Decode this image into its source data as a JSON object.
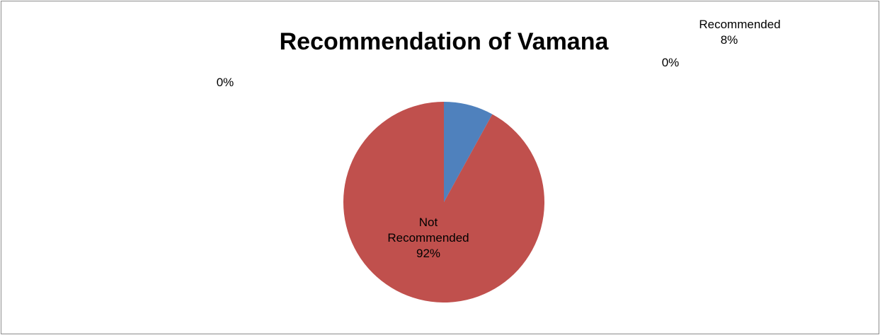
{
  "chart_data": {
    "type": "pie",
    "title": "Recommendation of Vamana",
    "categories": [
      "Recommended",
      "Not Recommended",
      null,
      null
    ],
    "values": [
      8,
      92,
      0,
      0
    ],
    "value_labels": [
      "8%",
      "92%",
      "0%",
      "0%"
    ],
    "colors": [
      "#4f81bd",
      "#c0504d",
      "#9bbb59",
      "#8064a2"
    ]
  }
}
